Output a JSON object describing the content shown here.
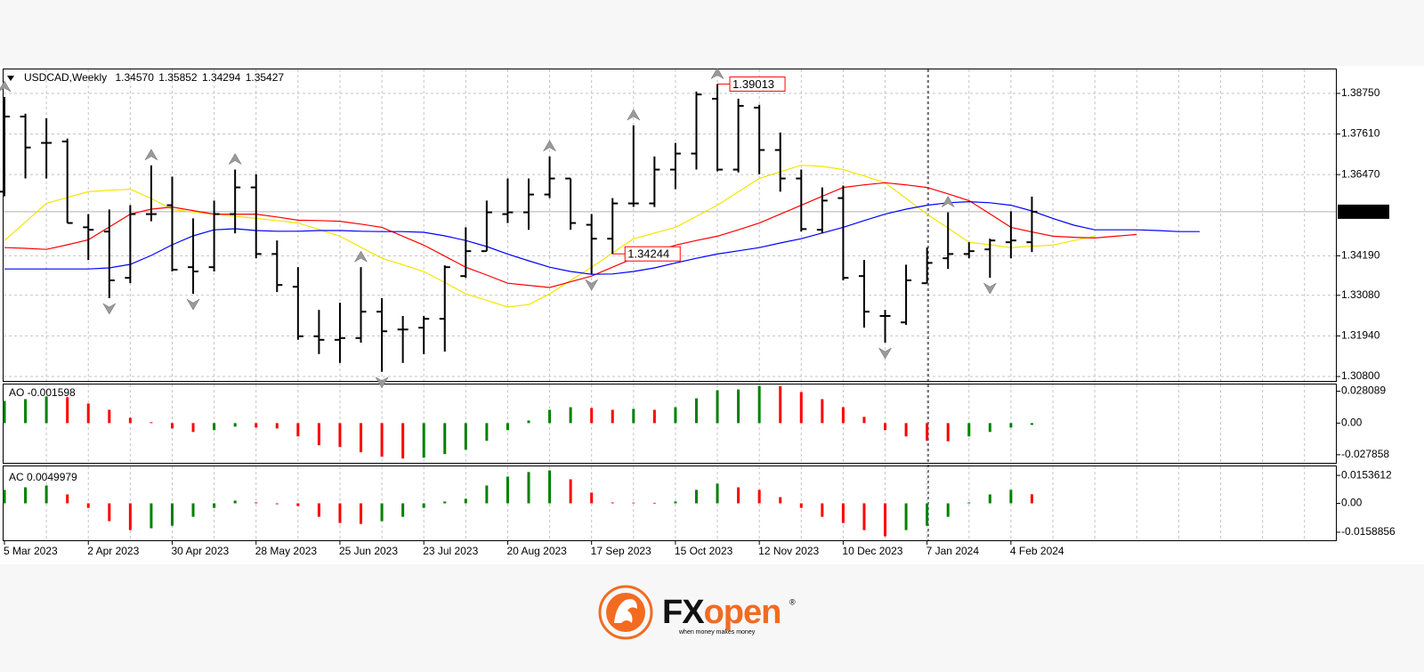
{
  "header": {
    "symbol": "USDCAD,Weekly",
    "open": "1.34570",
    "high": "1.35852",
    "low": "1.34294",
    "close": "1.35427"
  },
  "chart_data": [
    {
      "type": "ohlc",
      "categories": [
        "5 Mar 2023",
        null,
        null,
        null,
        "2 Apr 2023",
        null,
        null,
        null,
        "30 Apr 2023",
        null,
        null,
        null,
        "28 May 2023",
        null,
        null,
        null,
        "25 Jun 2023",
        null,
        null,
        null,
        "23 Jul 2023",
        null,
        null,
        null,
        "20 Aug 2023",
        null,
        null,
        null,
        "17 Sep 2023",
        null,
        null,
        null,
        "15 Oct 2023",
        null,
        null,
        null,
        "12 Nov 2023",
        null,
        null,
        null,
        "10 Dec 2023",
        null,
        null,
        null,
        "7 Jan 2024",
        null,
        null,
        null,
        "4 Feb 2024",
        null,
        null,
        null,
        null,
        null,
        null,
        null,
        null,
        null
      ],
      "open": [
        1.3599,
        1.381,
        1.3736,
        1.374,
        1.3499,
        1.3487,
        1.3357,
        1.3536,
        1.3561,
        1.3387,
        1.3387,
        1.3536,
        1.3611,
        1.3424,
        1.3332,
        1.3193,
        1.3183,
        1.3188,
        1.3262,
        1.3212,
        1.3217,
        1.3242,
        1.3362,
        1.3432,
        1.3536,
        1.3541,
        1.3591,
        1.3636,
        1.3506,
        1.3467,
        1.3566,
        1.3566,
        1.3661,
        1.3706,
        1.386,
        1.3661,
        1.3835,
        1.3716,
        1.3636,
        1.3492,
        1.3581,
        1.3362,
        1.325,
        1.3232,
        1.3342,
        1.3412,
        1.3424,
        1.3437,
        1.3457,
        1.3457,
        null,
        null,
        null,
        null,
        null,
        null,
        null,
        null
      ],
      "high": [
        1.3865,
        1.3818,
        1.3805,
        1.3748,
        1.3536,
        1.3549,
        1.3561,
        1.3673,
        1.3641,
        1.3524,
        1.3574,
        1.3661,
        1.3648,
        1.3462,
        1.3387,
        1.3267,
        1.3287,
        1.3387,
        1.33,
        1.325,
        1.325,
        1.3392,
        1.3499,
        1.3574,
        1.3636,
        1.3636,
        1.3698,
        1.3636,
        1.3536,
        1.3581,
        1.3785,
        1.3698,
        1.3736,
        1.388,
        1.39013,
        1.386,
        1.3843,
        1.3765,
        1.3661,
        1.3611,
        1.3616,
        1.3407,
        1.3267,
        1.3394,
        1.3442,
        1.3541,
        1.3457,
        1.3467,
        1.3544,
        1.35852,
        null,
        null,
        null,
        null,
        null,
        null,
        null,
        null
      ],
      "low": [
        1.3586,
        1.3636,
        1.3636,
        1.3511,
        1.3407,
        1.33,
        1.3342,
        1.3516,
        1.3375,
        1.3312,
        1.3375,
        1.3482,
        1.3412,
        1.3317,
        1.3183,
        1.3143,
        1.3118,
        1.3175,
        1.3093,
        1.3118,
        1.3143,
        1.315,
        1.3357,
        1.3432,
        1.3511,
        1.3492,
        1.3581,
        1.3492,
        1.3367,
        1.3424,
        1.3556,
        1.3556,
        1.3606,
        1.3661,
        1.3656,
        1.3653,
        1.3648,
        1.3599,
        1.3487,
        1.3482,
        1.335,
        1.3217,
        1.3175,
        1.3225,
        1.3342,
        1.3382,
        1.3412,
        1.3357,
        1.3412,
        1.34294,
        null,
        null,
        null,
        null,
        null,
        null,
        null,
        null
      ],
      "close": [
        1.381,
        1.3723,
        1.3736,
        1.3511,
        1.3492,
        1.335,
        1.3536,
        1.3536,
        1.338,
        1.3375,
        1.3536,
        1.3611,
        1.3424,
        1.3337,
        1.3193,
        1.3183,
        1.3188,
        1.3262,
        1.3207,
        1.3212,
        1.3242,
        1.3387,
        1.3432,
        1.3541,
        1.3541,
        1.3591,
        1.3636,
        1.3511,
        1.3467,
        1.3566,
        1.3566,
        1.3661,
        1.3706,
        1.3872,
        1.3661,
        1.384,
        1.3716,
        1.3636,
        1.3494,
        1.3574,
        1.3357,
        1.3262,
        1.325,
        1.335,
        1.3399,
        1.3424,
        1.3432,
        1.3462,
        1.3462,
        1.35427,
        null,
        null,
        null,
        null,
        null,
        null,
        null,
        null
      ],
      "color": "#000000",
      "series": [
        {
          "color": "#f2e600",
          "values": [
            1.3462,
            1.3514,
            1.3566,
            1.3583,
            1.3599,
            1.3603,
            1.3606,
            1.358,
            1.3549,
            1.3542,
            1.3536,
            1.353,
            1.3524,
            1.3518,
            1.3511,
            1.3493,
            1.3474,
            1.3443,
            1.3412,
            1.3394,
            1.3375,
            1.3344,
            1.3312,
            1.3294,
            1.3275,
            1.3282,
            1.3312,
            1.335,
            1.3387,
            1.3427,
            1.3467,
            1.3483,
            1.3499,
            1.353,
            1.3561,
            1.3599,
            1.3636,
            1.3655,
            1.3673,
            1.367,
            1.3661,
            1.3643,
            1.3624,
            1.358,
            1.3536,
            1.3497,
            1.3457,
            1.345,
            1.3442,
            1.3446,
            1.3449,
            1.3462,
            1.3474,
            null,
            null,
            null,
            null,
            null
          ]
        },
        {
          "color": "#ff0000",
          "values": [
            1.3442,
            1.344,
            1.3437,
            1.345,
            1.3464,
            1.35,
            1.3536,
            1.355,
            1.3556,
            1.3546,
            1.3536,
            1.3536,
            1.3536,
            1.3528,
            1.3519,
            1.3518,
            1.3516,
            1.3508,
            1.3499,
            1.3474,
            1.3449,
            1.3418,
            1.3387,
            1.3365,
            1.3342,
            1.3336,
            1.333,
            1.3346,
            1.3362,
            1.3387,
            1.3412,
            1.343,
            1.3449,
            1.3462,
            1.3474,
            1.3492,
            1.3511,
            1.3536,
            1.3561,
            1.3586,
            1.3611,
            1.3618,
            1.3624,
            1.3618,
            1.3611,
            1.3593,
            1.3574,
            1.3537,
            1.3499,
            1.3486,
            1.3474,
            1.3471,
            1.3469,
            1.3474,
            1.3479,
            null,
            null,
            null
          ]
        },
        {
          "color": "#0000ff",
          "values": [
            1.3382,
            1.3382,
            1.3382,
            1.3382,
            1.3382,
            1.3385,
            1.3395,
            1.342,
            1.345,
            1.3475,
            1.3492,
            1.3495,
            1.349,
            1.3488,
            1.3488,
            1.349,
            1.349,
            1.3488,
            1.3487,
            1.3487,
            1.3485,
            1.3475,
            1.3462,
            1.3445,
            1.3424,
            1.3405,
            1.3387,
            1.3375,
            1.3367,
            1.3368,
            1.3375,
            1.3385,
            1.3399,
            1.3412,
            1.3424,
            1.3433,
            1.3442,
            1.3455,
            1.3467,
            1.3483,
            1.3499,
            1.3518,
            1.3536,
            1.355,
            1.3561,
            1.3568,
            1.3571,
            1.3568,
            1.3561,
            1.3545,
            1.3524,
            1.3505,
            1.3492,
            1.3492,
            1.3492,
            1.349,
            1.3487,
            1.3487
          ]
        }
      ],
      "fractals_up": [
        1.3865,
        null,
        null,
        null,
        null,
        null,
        null,
        1.3673,
        null,
        null,
        null,
        1.3661,
        null,
        null,
        null,
        null,
        null,
        1.3387,
        null,
        null,
        null,
        null,
        null,
        null,
        null,
        null,
        1.3698,
        null,
        null,
        null,
        1.3785,
        null,
        null,
        null,
        1.39013,
        null,
        null,
        null,
        null,
        null,
        null,
        null,
        null,
        null,
        null,
        1.3541,
        null,
        null,
        null,
        null,
        null,
        null,
        null,
        null,
        null,
        null,
        null,
        null
      ],
      "fractals_down": [
        null,
        null,
        null,
        null,
        null,
        1.33,
        null,
        null,
        null,
        1.3312,
        null,
        null,
        null,
        null,
        null,
        null,
        null,
        null,
        1.3093,
        null,
        null,
        null,
        null,
        null,
        null,
        null,
        null,
        null,
        1.3367,
        null,
        null,
        null,
        null,
        null,
        null,
        null,
        null,
        null,
        null,
        null,
        null,
        null,
        1.3175,
        null,
        null,
        null,
        null,
        1.3357,
        null,
        null,
        null,
        null,
        null,
        null,
        null,
        null,
        null,
        null
      ],
      "fractal_color": "#9a9a9a",
      "annotations": [
        {
          "value": 1.39013,
          "label": "1.39013"
        },
        {
          "value": 1.34244,
          "label": "1.34244"
        }
      ],
      "annotation_color": "#ff0000",
      "last_price": {
        "value": 1.35427,
        "label": "1.35427"
      },
      "ylim": [
        1.30675,
        1.39423
      ],
      "yticks": [
        {
          "value": 1.3875,
          "label": "1.38750"
        },
        {
          "value": 1.3761,
          "label": "1.37610"
        },
        {
          "value": 1.3647,
          "label": "1.36470"
        },
        {
          "value": 1.3419,
          "label": "1.34190"
        },
        {
          "value": 1.3308,
          "label": "1.33080"
        },
        {
          "value": 1.3194,
          "label": "1.31940"
        },
        {
          "value": 1.308,
          "label": "1.30800"
        }
      ],
      "grid": true
    },
    {
      "type": "histogram",
      "title": "AO -0.001598",
      "values": [
        0.0195,
        0.0211,
        0.0234,
        0.0228,
        0.0172,
        0.0117,
        0.0047,
        0.0008,
        -0.0047,
        -0.0078,
        -0.0062,
        -0.0031,
        -0.0039,
        -0.0047,
        -0.0117,
        -0.0195,
        -0.0211,
        -0.0257,
        -0.0296,
        -0.0312,
        -0.0305,
        -0.0273,
        -0.0234,
        -0.0156,
        -0.0062,
        0.0023,
        0.0117,
        0.014,
        0.0133,
        0.0117,
        0.0125,
        0.0117,
        0.014,
        0.0218,
        0.0289,
        0.0296,
        0.0328,
        0.0326,
        0.0273,
        0.0211,
        0.014,
        0.0055,
        -0.0062,
        -0.0117,
        -0.0156,
        -0.016,
        -0.0117,
        -0.0078,
        -0.0039,
        -0.001598
      ],
      "up_color": "#008000",
      "down_color": "#ff0000",
      "ylim": [
        -0.035,
        0.034
      ],
      "yticks": [
        0.028089,
        {
          "value": 0,
          "label": "0.00"
        },
        -0.027858
      ]
    },
    {
      "type": "histogram",
      "title": "AC 0.0049979",
      "values": [
        0.0074,
        0.0088,
        0.0098,
        0.0049,
        -0.0025,
        -0.0098,
        -0.0147,
        -0.0137,
        -0.0123,
        -0.0074,
        -0.0025,
        0.0015,
        0.0005,
        -0.0005,
        -0.0015,
        -0.0074,
        -0.0108,
        -0.0113,
        -0.0098,
        -0.0074,
        -0.0025,
        0.001,
        0.0025,
        0.0098,
        0.0147,
        0.0172,
        0.0181,
        0.0132,
        0.0059,
        0.0005,
        0.0004,
        0.0003,
        0.001,
        0.0074,
        0.0108,
        0.0088,
        0.0074,
        0.0034,
        -0.0025,
        -0.0074,
        -0.0108,
        -0.0147,
        -0.0181,
        -0.0147,
        -0.0123,
        -0.0074,
        0.0005,
        0.0049,
        0.0074,
        0.0049979
      ],
      "up_color": "#008000",
      "down_color": "#ff0000",
      "ylim": [
        -0.0203,
        0.0203
      ],
      "yticks": [
        0.0153612,
        {
          "value": 0,
          "label": "0.00"
        },
        -0.0158856
      ]
    }
  ],
  "footer": {
    "brand_fx": "FX",
    "brand_open": "open",
    "tagline": "when money makes money",
    "mark": "®"
  }
}
